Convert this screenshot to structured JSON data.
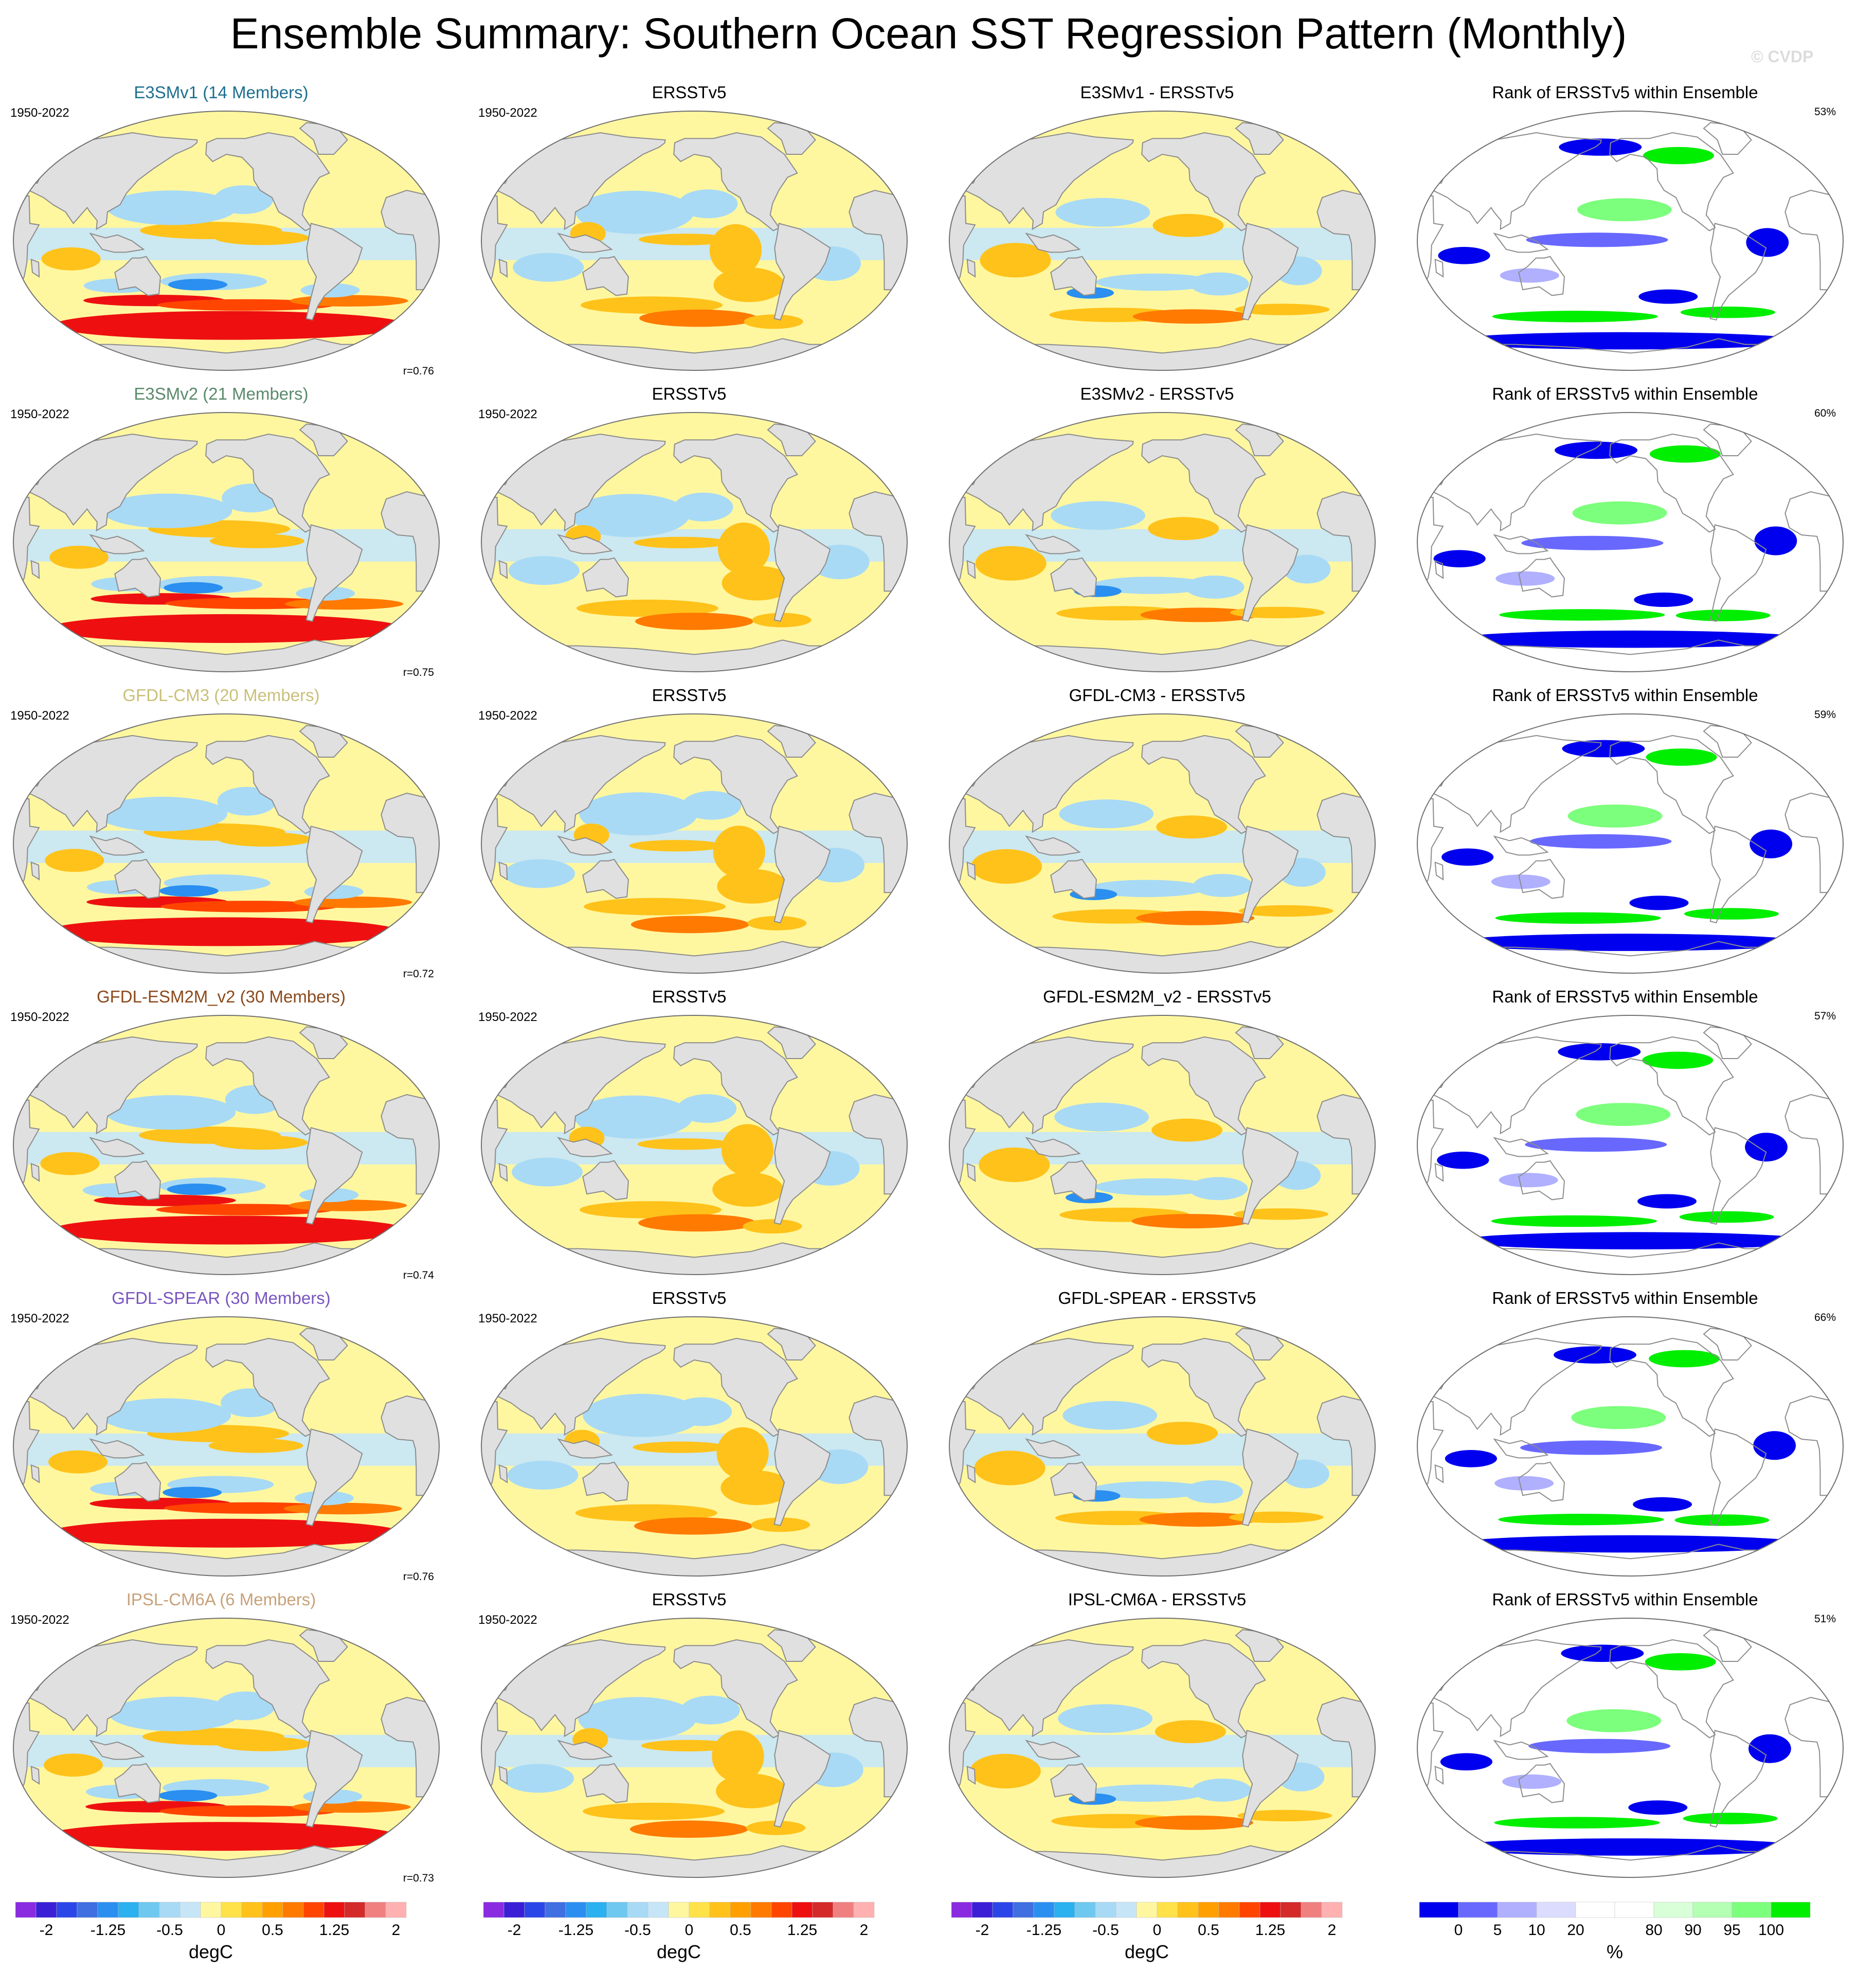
{
  "title": "Ensemble Summary: Southern Ocean SST Regression Pattern (Monthly)",
  "watermark": "© CVDP",
  "chart_data": {
    "type": "heatmap",
    "projection": "Robinson (global, Pacific-centered)",
    "grid": false,
    "rows": [
      {
        "model": "E3SMv1 (14 Members)",
        "model_color": "#1d6f8f",
        "obs": "ERSSTv5",
        "diff": "E3SMv1 - ERSSTv5",
        "rank": "Rank of ERSSTv5 within Ensemble",
        "period": "1950-2022",
        "obs_period": "1950-2022",
        "r": "r=0.76",
        "rank_pct": "53%"
      },
      {
        "model": "E3SMv2 (21 Members)",
        "model_color": "#5a8a6a",
        "obs": "ERSSTv5",
        "diff": "E3SMv2 - ERSSTv5",
        "rank": "Rank of ERSSTv5 within Ensemble",
        "period": "1950-2022",
        "obs_period": "1950-2022",
        "r": "r=0.75",
        "rank_pct": "60%"
      },
      {
        "model": "GFDL-CM3 (20 Members)",
        "model_color": "#c9c07a",
        "obs": "ERSSTv5",
        "diff": "GFDL-CM3 - ERSSTv5",
        "rank": "Rank of ERSSTv5 within Ensemble",
        "period": "1950-2022",
        "obs_period": "1950-2022",
        "r": "r=0.72",
        "rank_pct": "59%"
      },
      {
        "model": "GFDL-ESM2M_v2 (30 Members)",
        "model_color": "#8b4a1c",
        "obs": "ERSSTv5",
        "diff": "GFDL-ESM2M_v2 - ERSSTv5",
        "rank": "Rank of ERSSTv5 within Ensemble",
        "period": "1950-2022",
        "obs_period": "1950-2022",
        "r": "r=0.74",
        "rank_pct": "57%"
      },
      {
        "model": "GFDL-SPEAR (30 Members)",
        "model_color": "#7a55c0",
        "obs": "ERSSTv5",
        "diff": "GFDL-SPEAR - ERSSTv5",
        "rank": "Rank of ERSSTv5 within Ensemble",
        "period": "1950-2022",
        "obs_period": "1950-2022",
        "r": "r=0.76",
        "rank_pct": "66%"
      },
      {
        "model": "IPSL-CM6A (6 Members)",
        "model_color": "#c8a27a",
        "obs": "ERSSTv5",
        "diff": "IPSL-CM6A - ERSSTv5",
        "rank": "Rank of ERSSTv5 within Ensemble",
        "period": "1950-2022",
        "obs_period": "1950-2022",
        "r": "r=0.73",
        "rank_pct": "51%"
      }
    ],
    "regression_colorbar": {
      "colors": [
        "#8a2be2",
        "#3a1fd6",
        "#2b46e8",
        "#3f6fe0",
        "#2a8ff0",
        "#2bb0f0",
        "#6fc8f0",
        "#a8daf5",
        "#c6e6f8",
        "#fff7a0",
        "#ffe24a",
        "#ffc21a",
        "#ffa000",
        "#ff7a00",
        "#ff4500",
        "#ee1010",
        "#d42a2a",
        "#f08080",
        "#ffb0b0"
      ],
      "ticks": [
        "-2",
        "-1.25",
        "-0.5",
        "0",
        "0.5",
        "1.25",
        "2"
      ],
      "label": "degC"
    },
    "rank_colorbar": {
      "colors": [
        "#0000ee",
        "#6868ff",
        "#b0b0ff",
        "#dcdcff",
        "#ffffff",
        "#ffffff",
        "#d8ffd8",
        "#b4ffb4",
        "#7cff7c",
        "#00ee00"
      ],
      "ticks": [
        "0",
        "5",
        "10",
        "20",
        "80",
        "90",
        "95",
        "100"
      ],
      "label": "%"
    },
    "colors": {
      "land": "#e0e0e0",
      "coast": "#8c8c8c",
      "rank_blue": "#0000ee",
      "rank_green": "#00ee00"
    }
  }
}
